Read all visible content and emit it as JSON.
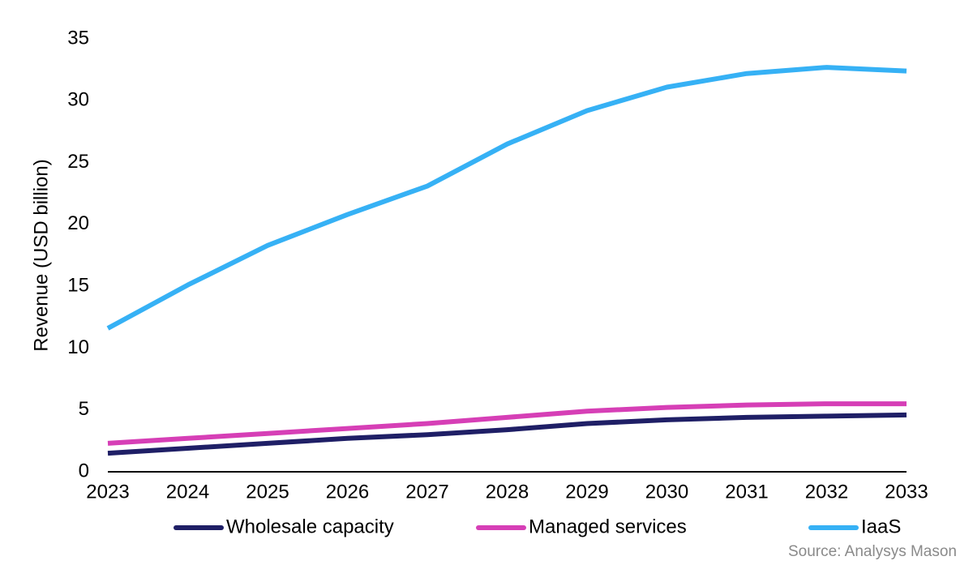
{
  "chart_data": {
    "type": "line",
    "y_label": "Revenue (USD billion)",
    "source": "Source: Analysys Mason",
    "categories": [
      "2023",
      "2024",
      "2025",
      "2026",
      "2027",
      "2028",
      "2029",
      "2030",
      "2031",
      "2032",
      "2033"
    ],
    "series": [
      {
        "name": "Wholesale capacity",
        "color": "#1f1f66",
        "values": [
          1.5,
          1.9,
          2.3,
          2.7,
          3.0,
          3.4,
          3.9,
          4.2,
          4.4,
          4.5,
          4.6
        ]
      },
      {
        "name": "Managed services",
        "color": "#d63fb6",
        "values": [
          2.3,
          2.7,
          3.1,
          3.5,
          3.9,
          4.4,
          4.9,
          5.2,
          5.4,
          5.5,
          5.5
        ]
      },
      {
        "name": "IaaS",
        "color": "#36b1f5",
        "values": [
          11.6,
          15.1,
          18.3,
          20.8,
          23.1,
          26.5,
          29.2,
          31.1,
          32.2,
          32.7,
          32.4
        ]
      }
    ],
    "ylim": [
      0,
      35
    ],
    "yticks": [
      0,
      5,
      10,
      15,
      20,
      25,
      30,
      35
    ],
    "grid": false
  }
}
